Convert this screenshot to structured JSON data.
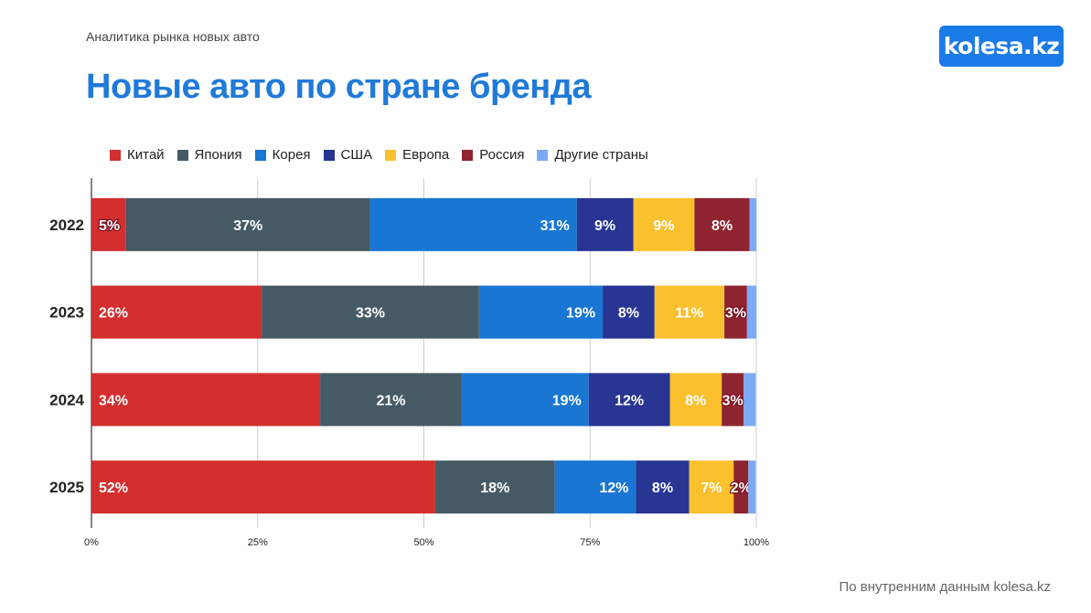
{
  "header": {
    "subtitle": "Аналитика рынка новых авто",
    "title": "Новые авто по стране бренда",
    "logo": "kolesa.kz"
  },
  "footer": "По внутренним данным kolesa.kz",
  "chart_data": {
    "type": "bar",
    "orientation": "horizontal",
    "stacked": true,
    "title": "Новые авто по стране бренда",
    "categories": [
      "2022",
      "2023",
      "2024",
      "2025"
    ],
    "xlim": [
      0,
      100
    ],
    "xticks": [
      "0%",
      "25%",
      "50%",
      "75%",
      "100%"
    ],
    "legend_position": "top-left",
    "series": [
      {
        "name": "Китай",
        "color": "#d32f2f",
        "values": [
          5.2,
          25.6,
          34.4,
          51.7
        ],
        "labels": [
          "5%",
          "26%",
          "34%",
          "52%"
        ]
      },
      {
        "name": "Япония",
        "color": "#455a64",
        "values": [
          36.7,
          32.7,
          21.3,
          18.0
        ],
        "labels": [
          "37%",
          "33%",
          "21%",
          "18%"
        ]
      },
      {
        "name": "Корея",
        "color": "#1976d2",
        "values": [
          31.1,
          18.6,
          19.1,
          12.2
        ],
        "labels": [
          "31%",
          "19%",
          "19%",
          "12%"
        ]
      },
      {
        "name": "США",
        "color": "#283593",
        "values": [
          8.5,
          7.8,
          12.2,
          8.0
        ],
        "labels": [
          "9%",
          "8%",
          "12%",
          "8%"
        ]
      },
      {
        "name": "Европа",
        "color": "#fbc02d",
        "values": [
          9.2,
          10.5,
          7.8,
          6.7
        ],
        "labels": [
          "9%",
          "11%",
          "8%",
          "7%"
        ]
      },
      {
        "name": "Россия",
        "color": "#8e2430",
        "values": [
          8.3,
          3.4,
          3.3,
          2.2
        ],
        "labels": [
          "8%",
          "3%",
          "3%",
          "2%"
        ]
      },
      {
        "name": "Другие страны",
        "color": "#7baaf7",
        "values": [
          1.0,
          1.4,
          1.8,
          1.1
        ],
        "labels": [
          "",
          "",
          "",
          ""
        ]
      }
    ]
  }
}
